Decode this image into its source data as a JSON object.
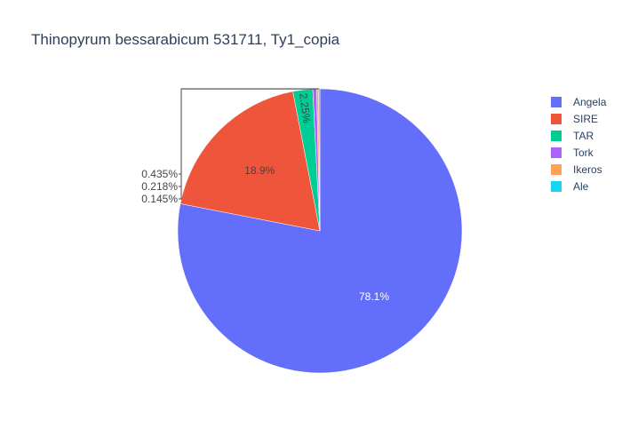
{
  "chart_data": {
    "type": "pie",
    "title": "Thinopyrum bessarabicum 531711, Ty1_copia",
    "slices": [
      {
        "label": "Angela",
        "value": 78.1,
        "display": "78.1%",
        "color": "#636efa"
      },
      {
        "label": "SIRE",
        "value": 18.9,
        "display": "18.9%",
        "color": "#ef553b"
      },
      {
        "label": "TAR",
        "value": 2.25,
        "display": "2.25%",
        "color": "#00cc96"
      },
      {
        "label": "Tork",
        "value": 0.435,
        "display": "0.435%",
        "color": "#ab63fa"
      },
      {
        "label": "Ikeros",
        "value": 0.218,
        "display": "0.218%",
        "color": "#ffa15a"
      },
      {
        "label": "Ale",
        "value": 0.145,
        "display": "0.145%",
        "color": "#19d3f3"
      }
    ],
    "legend_position": "top-right",
    "direction": "clockwise",
    "start": "top"
  }
}
